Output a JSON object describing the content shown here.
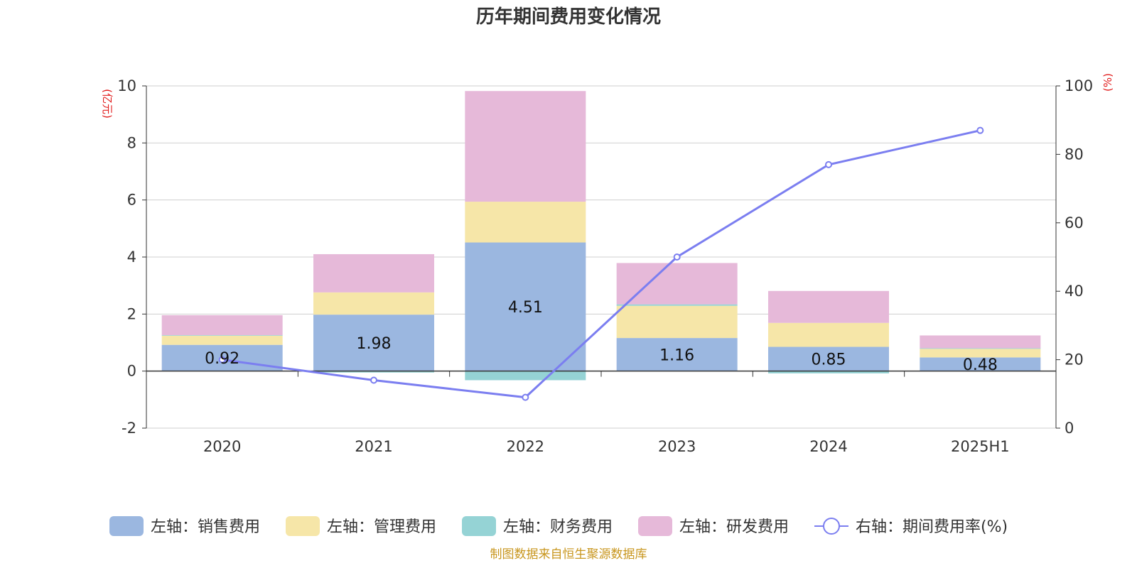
{
  "chart_data": {
    "type": "bar",
    "title": "历年期间费用变化情况",
    "left_unit": "(亿元)",
    "right_unit": "(%)",
    "categories": [
      "2020",
      "2021",
      "2022",
      "2023",
      "2024",
      "2025H1"
    ],
    "ylim_left": [
      -2,
      10
    ],
    "yticks_left": [
      "10",
      "8",
      "6",
      "4",
      "2",
      "0",
      "-2"
    ],
    "ylim_right": [
      0,
      100
    ],
    "yticks_right": [
      "100",
      "80",
      "60",
      "40",
      "20",
      "0"
    ],
    "grid": true,
    "stacked": true,
    "series": [
      {
        "name": "左轴：销售费用",
        "axis": "left",
        "kind": "bar",
        "color": "#9bb7e0",
        "values": [
          0.92,
          1.98,
          4.51,
          1.16,
          0.85,
          0.48
        ],
        "labels": [
          "0.92",
          "1.98",
          "4.51",
          "1.16",
          "0.85",
          "0.48"
        ]
      },
      {
        "name": "左轴：管理费用",
        "axis": "left",
        "kind": "bar",
        "color": "#f6e6a8",
        "values": [
          0.32,
          0.78,
          1.43,
          1.13,
          0.84,
          0.3
        ]
      },
      {
        "name": "左轴：财务费用",
        "axis": "left",
        "kind": "bar",
        "color": "#95d3d5",
        "values": [
          0.02,
          -0.05,
          -0.32,
          0.05,
          -0.08,
          0.02
        ]
      },
      {
        "name": "左轴：研发费用",
        "axis": "left",
        "kind": "bar",
        "color": "#e6b9d9",
        "values": [
          0.7,
          1.34,
          3.88,
          1.45,
          1.12,
          0.45
        ]
      },
      {
        "name": "右轴：期间费用率(%)",
        "axis": "right",
        "kind": "line",
        "color": "#7b7ef0",
        "values": [
          20,
          14,
          9,
          50,
          77,
          87
        ]
      }
    ],
    "legend_position": "bottom"
  },
  "source_note": "制图数据来自恒生聚源数据库"
}
